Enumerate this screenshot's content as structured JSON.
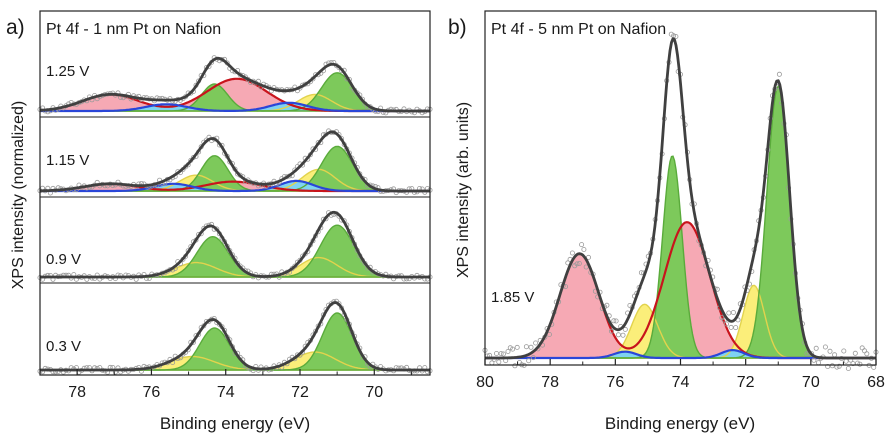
{
  "figure": {
    "panel_a_letter": "a)",
    "panel_b_letter": "b)"
  },
  "chart_data": [
    {
      "type": "area",
      "panel": "a",
      "title": "Pt 4f - 1 nm Pt on Nafion",
      "xlabel": "Binding energy (eV)",
      "ylabel": "XPS intensity (normalized)",
      "xlim": [
        79.0,
        68.5
      ],
      "x_reversed": true,
      "x_ticks": [
        "78",
        "76",
        "74",
        "72",
        "70"
      ],
      "x_tick_values": [
        78,
        76,
        74,
        72,
        70
      ],
      "ylim": [
        0,
        1
      ],
      "colors": {
        "green": "#7dc95b",
        "green_edge": "#5aab3b",
        "yellow": "#fbee7a",
        "yellow_edge": "#e2d34d",
        "pink": "#f6a4b0",
        "red_edge": "#c8141c",
        "blue_fill": "#7fd3f2",
        "blue_edge": "#2a46d8",
        "envelope": "#404040",
        "points": "#9a9a9a"
      },
      "spectra": [
        {
          "label": "1.25 V",
          "components": [
            {
              "role": "pink",
              "center": 77.1,
              "width": 0.75,
              "amp": 0.22
            },
            {
              "role": "blue",
              "center": 75.6,
              "width": 0.55,
              "amp": 0.09
            },
            {
              "role": "green",
              "center": 74.3,
              "width": 0.35,
              "amp": 0.36
            },
            {
              "role": "pink",
              "center": 73.7,
              "width": 0.8,
              "amp": 0.43
            },
            {
              "role": "blue",
              "center": 72.3,
              "width": 0.5,
              "amp": 0.11
            },
            {
              "role": "yellow",
              "center": 71.6,
              "width": 0.45,
              "amp": 0.22
            },
            {
              "role": "green",
              "center": 71.0,
              "width": 0.42,
              "amp": 0.51
            }
          ]
        },
        {
          "label": "1.15 V",
          "components": [
            {
              "role": "pink",
              "center": 77.1,
              "width": 0.7,
              "amp": 0.1
            },
            {
              "role": "blue",
              "center": 75.4,
              "width": 0.5,
              "amp": 0.1
            },
            {
              "role": "yellow",
              "center": 74.8,
              "width": 0.45,
              "amp": 0.22
            },
            {
              "role": "green",
              "center": 74.3,
              "width": 0.36,
              "amp": 0.49
            },
            {
              "role": "pink",
              "center": 73.8,
              "width": 0.75,
              "amp": 0.13
            },
            {
              "role": "blue",
              "center": 72.1,
              "width": 0.45,
              "amp": 0.14
            },
            {
              "role": "yellow",
              "center": 71.5,
              "width": 0.45,
              "amp": 0.3
            },
            {
              "role": "green",
              "center": 71.0,
              "width": 0.42,
              "amp": 0.62
            }
          ]
        },
        {
          "label": "0.9 V",
          "components": [
            {
              "role": "yellow",
              "center": 74.8,
              "width": 0.55,
              "amp": 0.2
            },
            {
              "role": "green",
              "center": 74.35,
              "width": 0.42,
              "amp": 0.56
            },
            {
              "role": "yellow",
              "center": 71.5,
              "width": 0.5,
              "amp": 0.27
            },
            {
              "role": "green",
              "center": 71.0,
              "width": 0.45,
              "amp": 0.72
            }
          ]
        },
        {
          "label": "0.3 V",
          "components": [
            {
              "role": "yellow",
              "center": 74.9,
              "width": 0.6,
              "amp": 0.18
            },
            {
              "role": "green",
              "center": 74.3,
              "width": 0.4,
              "amp": 0.56
            },
            {
              "role": "yellow",
              "center": 71.6,
              "width": 0.55,
              "amp": 0.24
            },
            {
              "role": "green",
              "center": 71.0,
              "width": 0.4,
              "amp": 0.76
            }
          ]
        }
      ]
    },
    {
      "type": "area",
      "panel": "b",
      "title": "Pt 4f - 5 nm Pt on Nafion",
      "xlabel": "Binding energy (eV)",
      "ylabel": "XPS intensity (arb. units)",
      "xlim": [
        80,
        68
      ],
      "x_reversed": true,
      "x_ticks": [
        "80",
        "78",
        "76",
        "74",
        "72",
        "70",
        "68"
      ],
      "x_tick_values": [
        80,
        78,
        76,
        74,
        72,
        70,
        68
      ],
      "ylim": [
        0,
        1
      ],
      "colors": {
        "green": "#7dc95b",
        "green_edge": "#5aab3b",
        "yellow": "#fbee7a",
        "yellow_edge": "#e2d34d",
        "pink": "#f6a4b0",
        "red_edge": "#c8141c",
        "blue_fill": "#7fd3f2",
        "blue_edge": "#2a46d8",
        "envelope": "#404040",
        "points": "#9a9a9a"
      },
      "spectra": [
        {
          "label": "1.85 V",
          "components": [
            {
              "role": "pink",
              "center": 77.1,
              "width": 0.6,
              "amp": 0.33
            },
            {
              "role": "blue",
              "center": 75.7,
              "width": 0.35,
              "amp": 0.02
            },
            {
              "role": "yellow",
              "center": 75.1,
              "width": 0.4,
              "amp": 0.17
            },
            {
              "role": "green",
              "center": 74.25,
              "width": 0.3,
              "amp": 0.64
            },
            {
              "role": "pink",
              "center": 73.8,
              "width": 0.7,
              "amp": 0.43
            },
            {
              "role": "blue",
              "center": 72.4,
              "width": 0.35,
              "amp": 0.025
            },
            {
              "role": "yellow",
              "center": 71.75,
              "width": 0.33,
              "amp": 0.23
            },
            {
              "role": "green",
              "center": 71.0,
              "width": 0.35,
              "amp": 0.86
            }
          ]
        }
      ]
    }
  ]
}
